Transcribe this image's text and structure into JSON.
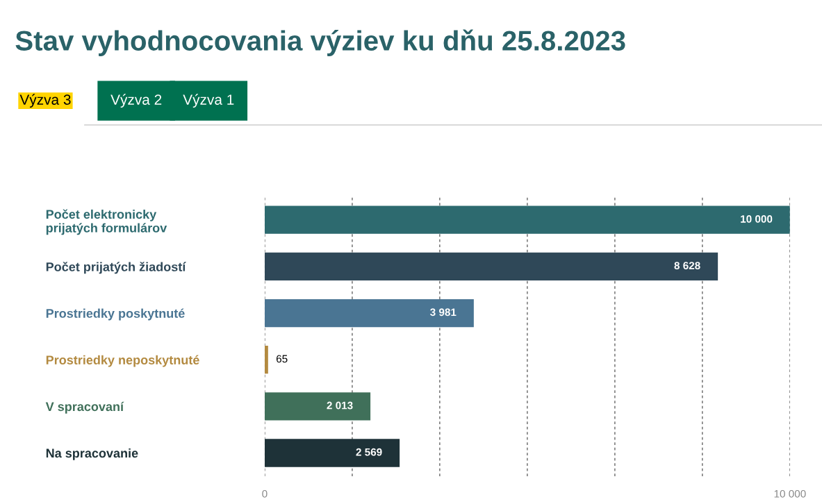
{
  "chart_data": {
    "type": "bar",
    "orientation": "horizontal",
    "title": "Stav vyhodnocovania výziev ku dňu 25.8.2023",
    "annotations": [
      "Výzva 3",
      "Výzva 2",
      "Výzva 1"
    ],
    "categories": [
      "Počet elektronicky\nprijatých formulárov",
      "Počet prijatých žiadostí",
      "Prostriedky poskytnuté",
      "Prostriedky neposkytnuté",
      "V spracovaní",
      "Na spracovanie"
    ],
    "values": [
      10000,
      8628,
      3981,
      65,
      2013,
      2569
    ],
    "colors": [
      "#2d6a6f",
      "#2f4858",
      "#4a7593",
      "#b38a40",
      "#40705a",
      "#1e3238"
    ],
    "value_labels": [
      "10 000",
      "8 628",
      "3 981",
      "65",
      "2 013",
      "2 569"
    ],
    "xlim": [
      0,
      10000
    ],
    "xticks": [
      0,
      {
        "value": 1667,
        "label": null
      },
      {
        "value": 3333,
        "label": null
      },
      {
        "value": 5000,
        "label": null
      },
      {
        "value": 6667,
        "label": null
      },
      {
        "value": 8333,
        "label": null
      },
      {
        "value": 10000,
        "label": "10 000"
      }
    ],
    "grid": "x",
    "legend": false
  }
}
